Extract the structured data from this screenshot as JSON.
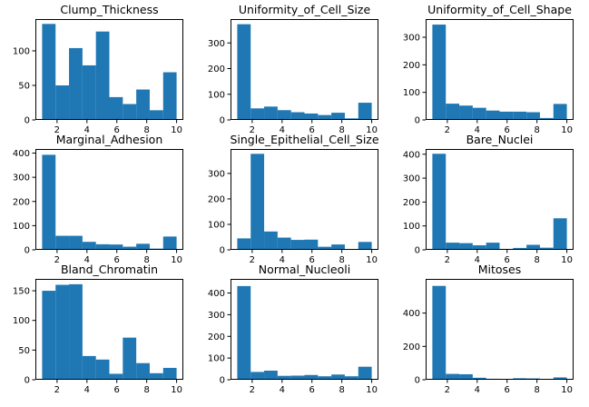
{
  "chart_data": [
    {
      "type": "bar",
      "title": "Clump_Thickness",
      "xlim": [
        0.55,
        10.45
      ],
      "ylim": [
        0,
        146
      ],
      "xticks": [
        2,
        4,
        6,
        8,
        10
      ],
      "yticks": [
        0,
        50,
        100
      ],
      "bin_edges": [
        1,
        1.9,
        2.8,
        3.7,
        4.6,
        5.5,
        6.4,
        7.3,
        8.2,
        9.1,
        10
      ],
      "values": [
        139,
        50,
        104,
        79,
        128,
        33,
        23,
        44,
        14,
        69
      ]
    },
    {
      "type": "bar",
      "title": "Uniformity_of_Cell_Size",
      "xlim": [
        0.55,
        10.45
      ],
      "ylim": [
        0,
        393
      ],
      "xticks": [
        2,
        4,
        6,
        8,
        10
      ],
      "yticks": [
        0,
        100,
        200,
        300
      ],
      "bin_edges": [
        1,
        1.9,
        2.8,
        3.7,
        4.6,
        5.5,
        6.4,
        7.3,
        8.2,
        9.1,
        10
      ],
      "values": [
        373,
        45,
        52,
        38,
        30,
        25,
        19,
        28,
        6,
        67
      ]
    },
    {
      "type": "bar",
      "title": "Uniformity_of_Cell_Shape",
      "xlim": [
        0.55,
        10.45
      ],
      "ylim": [
        0,
        366
      ],
      "xticks": [
        2,
        4,
        6,
        8,
        10
      ],
      "yticks": [
        0,
        100,
        200,
        300
      ],
      "bin_edges": [
        1,
        1.9,
        2.8,
        3.7,
        4.6,
        5.5,
        6.4,
        7.3,
        8.2,
        9.1,
        10
      ],
      "values": [
        346,
        59,
        52,
        44,
        34,
        30,
        30,
        28,
        7,
        58
      ]
    },
    {
      "type": "bar",
      "title": "Marginal_Adhesion",
      "xlim": [
        0.55,
        10.45
      ],
      "ylim": [
        0,
        417
      ],
      "xticks": [
        2,
        4,
        6,
        8,
        10
      ],
      "yticks": [
        0,
        100,
        200,
        300,
        400
      ],
      "bin_edges": [
        1,
        1.9,
        2.8,
        3.7,
        4.6,
        5.5,
        6.4,
        7.3,
        8.2,
        9.1,
        10
      ],
      "values": [
        393,
        58,
        58,
        33,
        23,
        22,
        13,
        25,
        5,
        55
      ]
    },
    {
      "type": "bar",
      "title": "Single_Epithelial_Cell_Size",
      "xlim": [
        0.55,
        10.45
      ],
      "ylim": [
        0,
        396
      ],
      "xticks": [
        2,
        4,
        6,
        8,
        10
      ],
      "yticks": [
        0,
        100,
        200,
        300
      ],
      "bin_edges": [
        1,
        1.9,
        2.8,
        3.7,
        4.6,
        5.5,
        6.4,
        7.3,
        8.2,
        9.1,
        10
      ],
      "values": [
        45,
        377,
        72,
        48,
        39,
        40,
        12,
        21,
        2,
        31
      ]
    },
    {
      "type": "bar",
      "title": "Bare_Nuclei",
      "xlim": [
        0.55,
        10.45
      ],
      "ylim": [
        0,
        422
      ],
      "xticks": [
        2,
        4,
        6,
        8,
        10
      ],
      "yticks": [
        0,
        100,
        200,
        300,
        400
      ],
      "bin_edges": [
        1,
        1.9,
        2.8,
        3.7,
        4.6,
        5.5,
        6.4,
        7.3,
        8.2,
        9.1,
        10
      ],
      "values": [
        402,
        30,
        28,
        19,
        30,
        4,
        8,
        21,
        9,
        132
      ]
    },
    {
      "type": "bar",
      "title": "Bland_Chromatin",
      "xlim": [
        0.55,
        10.45
      ],
      "ylim": [
        0,
        170
      ],
      "xticks": [
        2,
        4,
        6,
        8,
        10
      ],
      "yticks": [
        0,
        50,
        100,
        150
      ],
      "bin_edges": [
        1,
        1.9,
        2.8,
        3.7,
        4.6,
        5.5,
        6.4,
        7.3,
        8.2,
        9.1,
        10
      ],
      "values": [
        150,
        160,
        161,
        40,
        34,
        10,
        71,
        28,
        11,
        20
      ]
    },
    {
      "type": "bar",
      "title": "Normal_Nucleoli",
      "xlim": [
        0.55,
        10.45
      ],
      "ylim": [
        0,
        465
      ],
      "xticks": [
        2,
        4,
        6,
        8,
        10
      ],
      "yticks": [
        0,
        100,
        200,
        300,
        400
      ],
      "bin_edges": [
        1,
        1.9,
        2.8,
        3.7,
        4.6,
        5.5,
        6.4,
        7.3,
        8.2,
        9.1,
        10
      ],
      "values": [
        432,
        36,
        42,
        18,
        19,
        22,
        16,
        24,
        16,
        60
      ]
    },
    {
      "type": "bar",
      "title": "Mitoses",
      "xlim": [
        0.55,
        10.45
      ],
      "ylim": [
        0,
        605
      ],
      "xticks": [
        2,
        4,
        6,
        8,
        10
      ],
      "yticks": [
        0,
        200,
        400
      ],
      "bin_edges": [
        1,
        1.9,
        2.8,
        3.7,
        4.6,
        5.5,
        6.4,
        7.3,
        8.2,
        9.1,
        10
      ],
      "values": [
        563,
        35,
        33,
        12,
        6,
        3,
        9,
        8,
        0,
        14
      ]
    }
  ]
}
